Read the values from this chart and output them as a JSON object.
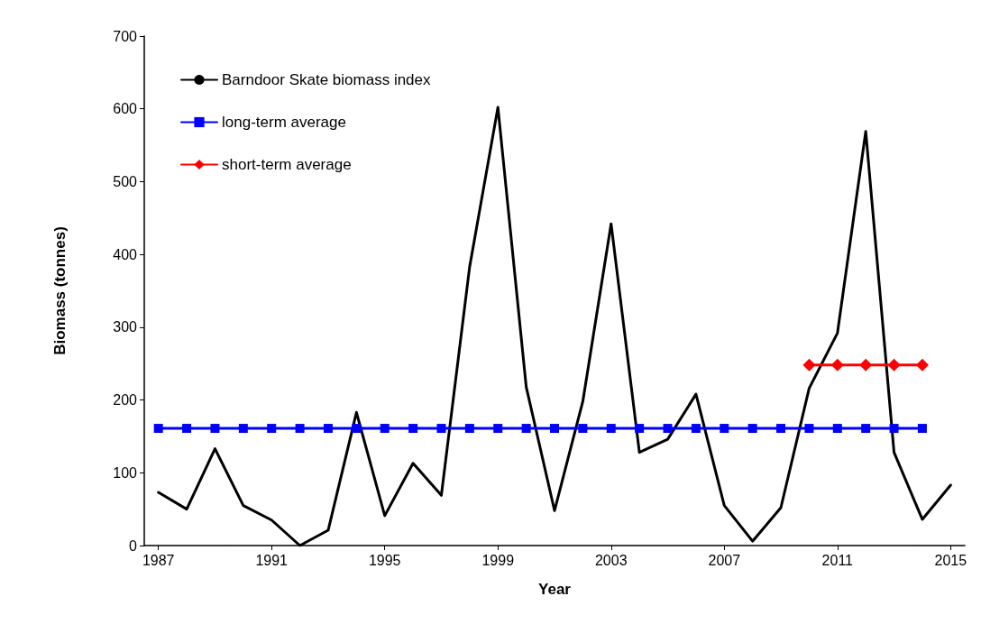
{
  "chart_data": {
    "type": "line",
    "xlabel": "Year",
    "ylabel": "Biomass (tonnes)",
    "xlim": [
      1986.5,
      2015.5
    ],
    "xticks": [
      1987,
      1991,
      1995,
      1999,
      2003,
      2007,
      2011,
      2015
    ],
    "ylim": [
      0,
      700
    ],
    "yticks": [
      0,
      100,
      200,
      300,
      400,
      500,
      600,
      700
    ],
    "grid": false,
    "legend": "top left",
    "line_style": "solid",
    "series": [
      {
        "name": "Barndoor Skate biomass index",
        "color": "#000000",
        "marker": "none",
        "x": [
          1987,
          1988,
          1989,
          1990,
          1991,
          1992,
          1993,
          1994,
          1995,
          1996,
          1997,
          1998,
          1999,
          2000,
          2001,
          2002,
          2003,
          2004,
          2005,
          2006,
          2007,
          2008,
          2009,
          2010,
          2011,
          2012,
          2013,
          2014,
          2015
        ],
        "values": [
          73,
          50,
          133,
          55,
          35,
          0,
          21,
          183,
          41,
          113,
          69,
          383,
          602,
          218,
          48,
          198,
          442,
          128,
          146,
          208,
          55,
          6,
          52,
          216,
          292,
          569,
          128,
          36,
          83
        ]
      },
      {
        "name": "long-term average",
        "color": "#0000ff",
        "marker": "square",
        "x": [
          1987,
          1988,
          1989,
          1990,
          1991,
          1992,
          1993,
          1994,
          1995,
          1996,
          1997,
          1998,
          1999,
          2000,
          2001,
          2002,
          2003,
          2004,
          2005,
          2006,
          2007,
          2008,
          2009,
          2010,
          2011,
          2012,
          2013,
          2014
        ],
        "values": [
          161,
          161,
          161,
          161,
          161,
          161,
          161,
          161,
          161,
          161,
          161,
          161,
          161,
          161,
          161,
          161,
          161,
          161,
          161,
          161,
          161,
          161,
          161,
          161,
          161,
          161,
          161,
          161
        ]
      },
      {
        "name": "short-term average",
        "color": "#ff0000",
        "marker": "diamond",
        "x": [
          2010,
          2011,
          2012,
          2013,
          2014
        ],
        "values": [
          248,
          248,
          248,
          248,
          248
        ]
      }
    ]
  }
}
